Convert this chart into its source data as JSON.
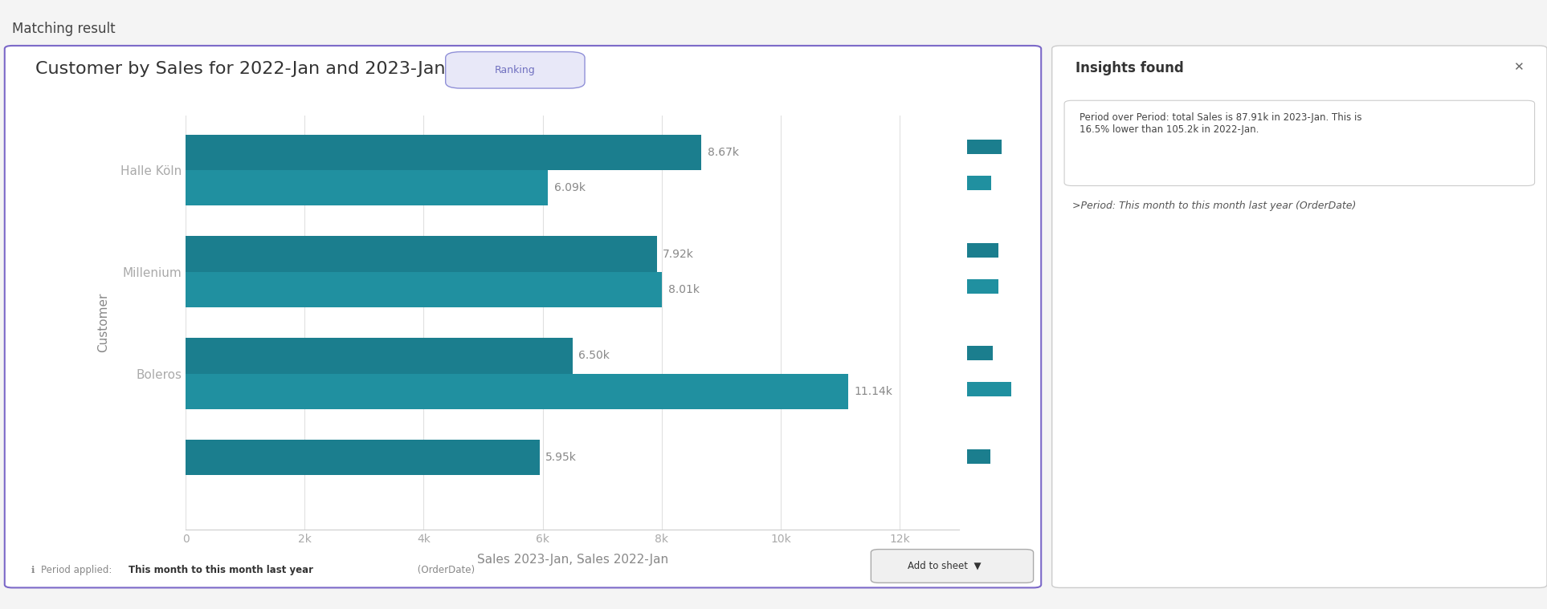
{
  "title": "Customer by Sales for 2022-Jan and 2023-Jan",
  "ranking_label": "Ranking",
  "ylabel": "Customer",
  "xlabel": "Sales 2023-Jan, Sales 2022-Jan",
  "customers": [
    "",
    "Boleros",
    "Millenium",
    "Halle Köln"
  ],
  "sales_2023": [
    5950,
    6500,
    7920,
    8670
  ],
  "sales_2022": [
    0,
    11140,
    8010,
    6090
  ],
  "bar_color_2023": "#1b7e8e",
  "bar_color_2022": "#1b7e8e",
  "bar_color_2022_alt": "#2892a0",
  "background_color": "#ffffff",
  "outer_bg": "#f4f4f4",
  "xlim": [
    0,
    13000
  ],
  "xticks": [
    0,
    2000,
    4000,
    6000,
    8000,
    10000,
    12000
  ],
  "xtick_labels": [
    "0",
    "2k",
    "4k",
    "6k",
    "8k",
    "10k",
    "12k"
  ],
  "bar_height": 0.35,
  "fig_width": 19.26,
  "fig_height": 7.59,
  "title_fontsize": 16,
  "axis_label_fontsize": 11,
  "tick_fontsize": 10,
  "value_fontsize": 10,
  "footer_text": "Period applied:  This month to this month last year (OrderDate)"
}
